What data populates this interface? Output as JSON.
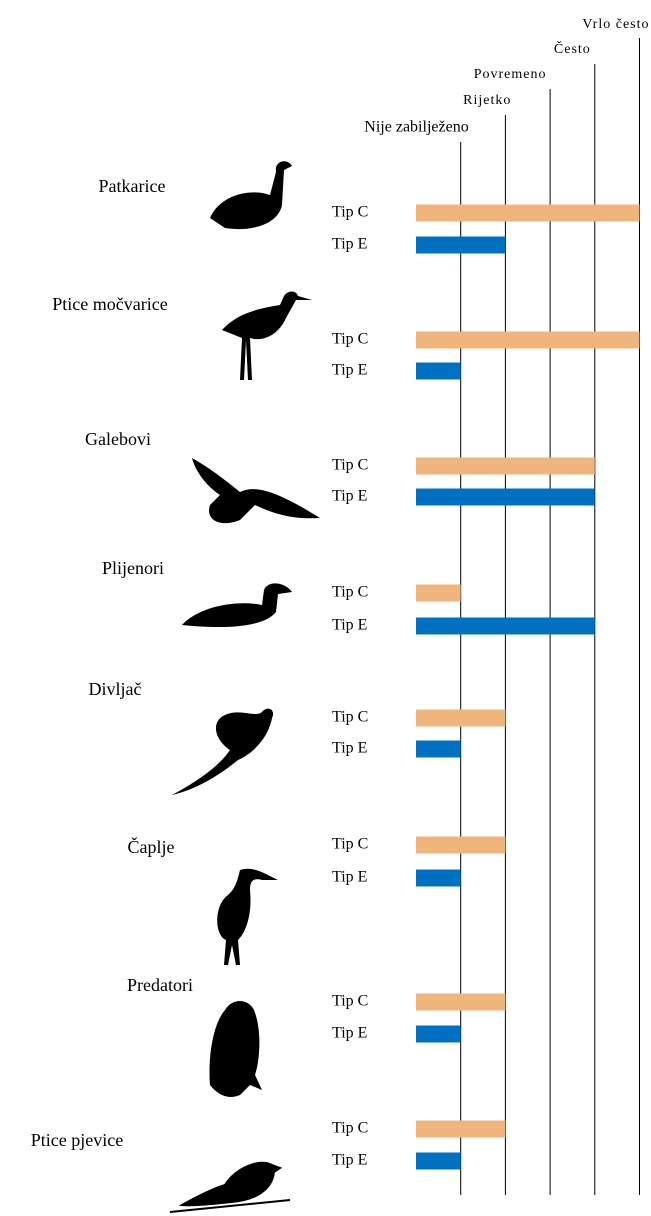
{
  "chart_data": {
    "type": "bar",
    "orientation": "horizontal",
    "categories": [
      "Patkarice",
      "Ptice močvarice",
      "Galebovi",
      "Plijenori",
      "Divljač",
      "Čaplje",
      "Predatori",
      "Ptice pjevice"
    ],
    "series": [
      {
        "name": "Tip C",
        "color": "#f0b47d",
        "values": [
          5,
          5,
          4,
          1,
          2,
          2,
          2,
          2
        ]
      },
      {
        "name": "Tip E",
        "color": "#0070c0",
        "values": [
          2,
          1,
          4,
          4,
          1,
          1,
          1,
          1
        ]
      }
    ],
    "xlim": [
      0,
      5
    ],
    "xticks": [
      {
        "value": 1,
        "label": "Nije zabilježeno"
      },
      {
        "value": 2,
        "label": "Rijetko"
      },
      {
        "value": 3,
        "label": "Povremeno"
      },
      {
        "value": 4,
        "label": "Često"
      },
      {
        "value": 5,
        "label": "Vrlo često"
      }
    ],
    "grid": true
  }
}
